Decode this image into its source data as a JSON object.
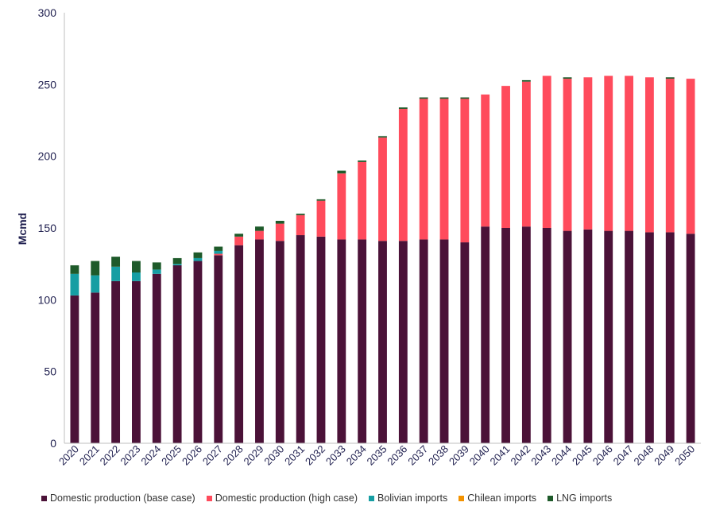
{
  "chart_data": {
    "type": "bar",
    "stacked": true,
    "title": "",
    "xlabel": "",
    "ylabel": "Mcmd",
    "ylim": [
      0,
      300
    ],
    "yticks": [
      0,
      50,
      100,
      150,
      200,
      250,
      300
    ],
    "grid": false,
    "legend_position": "bottom",
    "categories": [
      "2020",
      "2021",
      "2022",
      "2023",
      "2024",
      "2025",
      "2026",
      "2027",
      "2028",
      "2029",
      "2030",
      "2031",
      "2032",
      "2033",
      "2034",
      "2035",
      "2036",
      "2037",
      "2038",
      "2039",
      "2040",
      "2041",
      "2042",
      "2043",
      "2044",
      "2045",
      "2046",
      "2047",
      "2048",
      "2049",
      "2050"
    ],
    "series": [
      {
        "name": "Domestic production (base case)",
        "color": "#4b1238",
        "values": [
          103,
          105,
          113,
          113,
          118,
          124,
          127,
          131,
          138,
          142,
          141,
          145,
          144,
          142,
          142,
          141,
          141,
          142,
          142,
          140,
          151,
          150,
          151,
          150,
          148,
          149,
          148,
          148,
          147,
          147,
          146
        ]
      },
      {
        "name": "Domestic production (high case)",
        "color": "#ff4b5c",
        "values": [
          0,
          0,
          0,
          0,
          0,
          0,
          0,
          1,
          6,
          6,
          12,
          14,
          25,
          46,
          54,
          72,
          92,
          98,
          98,
          100,
          92,
          99,
          101,
          106,
          106,
          106,
          108,
          108,
          108,
          107,
          108
        ]
      },
      {
        "name": "Bolivian imports",
        "color": "#169ea3",
        "values": [
          15,
          12,
          10,
          6,
          3,
          1,
          2,
          2,
          0,
          0,
          0,
          0,
          0,
          0,
          0,
          0,
          0,
          0,
          0,
          0,
          0,
          0,
          0,
          0,
          0,
          0,
          0,
          0,
          0,
          0,
          0
        ]
      },
      {
        "name": "Chilean imports",
        "color": "#f39200",
        "values": [
          0,
          0,
          0,
          0,
          0,
          0,
          0,
          0,
          0,
          0,
          0,
          0,
          0,
          0,
          0,
          0,
          0,
          0,
          0,
          0,
          0,
          0,
          0,
          0,
          0,
          0,
          0,
          0,
          0,
          0,
          0
        ]
      },
      {
        "name": "LNG imports",
        "color": "#1e5a2a",
        "values": [
          6,
          10,
          7,
          8,
          5,
          4,
          4,
          3,
          2,
          3,
          2,
          1,
          1,
          2,
          1,
          1,
          1,
          1,
          1,
          1,
          0,
          0,
          1,
          0,
          1,
          0,
          0,
          0,
          0,
          1,
          0
        ]
      }
    ]
  }
}
